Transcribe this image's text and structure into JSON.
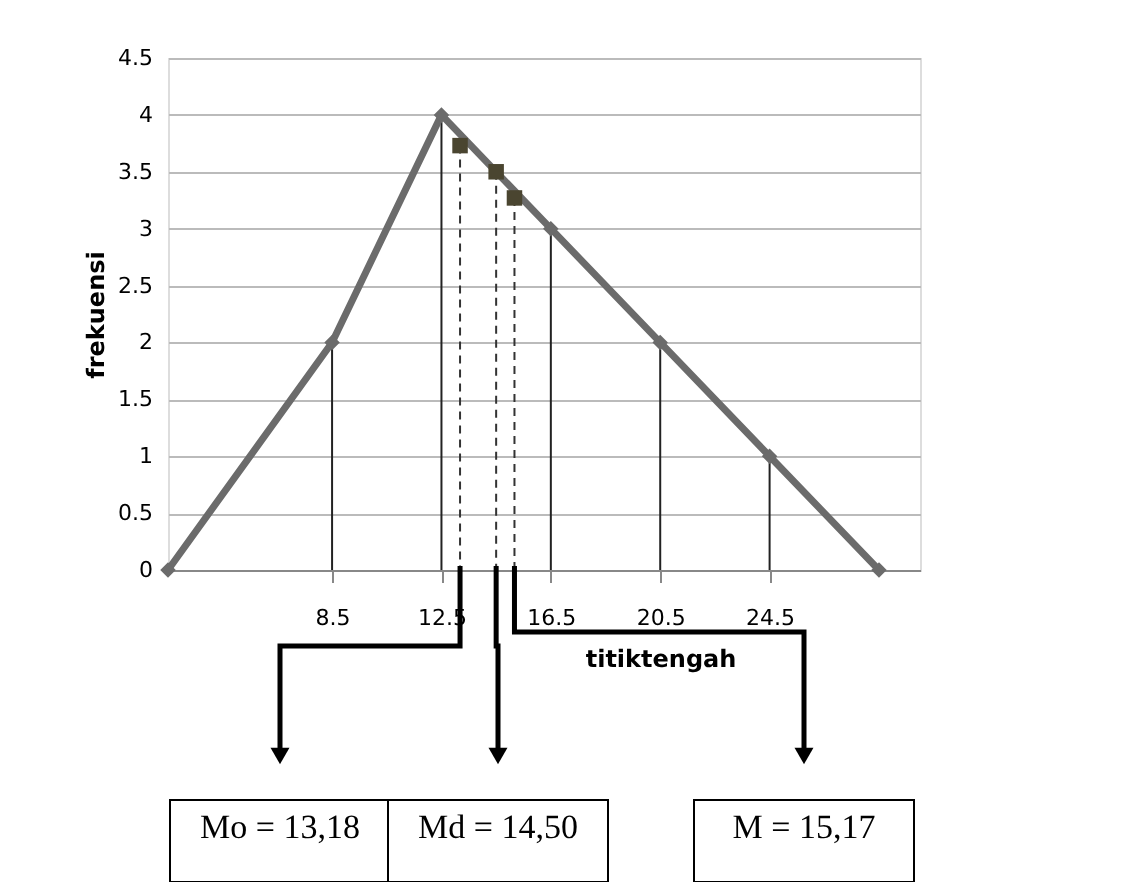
{
  "chart_data": {
    "type": "line",
    "ylabel": "frekuensi",
    "xlabel": "titiktengah",
    "x": [
      2.5,
      8.5,
      12.5,
      16.5,
      20.5,
      24.5,
      28.5
    ],
    "series": [
      {
        "color": "#6b6b6b",
        "values": [
          0,
          2,
          4,
          3,
          2,
          1,
          0
        ],
        "marker": "diamond",
        "line_style": "solid"
      },
      {
        "type": "scatter",
        "x": [
          13.18,
          14.5,
          15.17
        ],
        "values": [
          3.73,
          3.5,
          3.27
        ],
        "color": "#4a4530",
        "marker": "square"
      }
    ],
    "xlim": [
      2.5,
      30
    ],
    "xticks": [
      8.5,
      12.5,
      16.5,
      20.5,
      24.5
    ],
    "ylim": [
      0,
      4.5
    ],
    "yticks": [
      0,
      0.5,
      1,
      1.5,
      2,
      2.5,
      3,
      3.5,
      4,
      4.5
    ],
    "grid": "y",
    "ref_lines": [
      {
        "axis": "x",
        "value": 8.5,
        "color": "#222222",
        "line_style": "solid"
      },
      {
        "axis": "x",
        "value": 12.5,
        "color": "#222222",
        "line_style": "solid"
      },
      {
        "axis": "x",
        "value": 16.5,
        "color": "#222222",
        "line_style": "solid"
      },
      {
        "axis": "x",
        "value": 20.5,
        "color": "#222222",
        "line_style": "solid"
      },
      {
        "axis": "x",
        "value": 24.5,
        "color": "#222222",
        "line_style": "solid"
      },
      {
        "axis": "x",
        "value": 13.18,
        "color": "#333333",
        "line_style": "dashed"
      },
      {
        "axis": "x",
        "value": 14.5,
        "color": "#333333",
        "line_style": "dashed"
      },
      {
        "axis": "x",
        "value": 15.17,
        "color": "#333333",
        "line_style": "dashed"
      }
    ],
    "annotations": [
      "Mo = 13,18",
      "Md = 14,50",
      "M = 15,17"
    ]
  }
}
